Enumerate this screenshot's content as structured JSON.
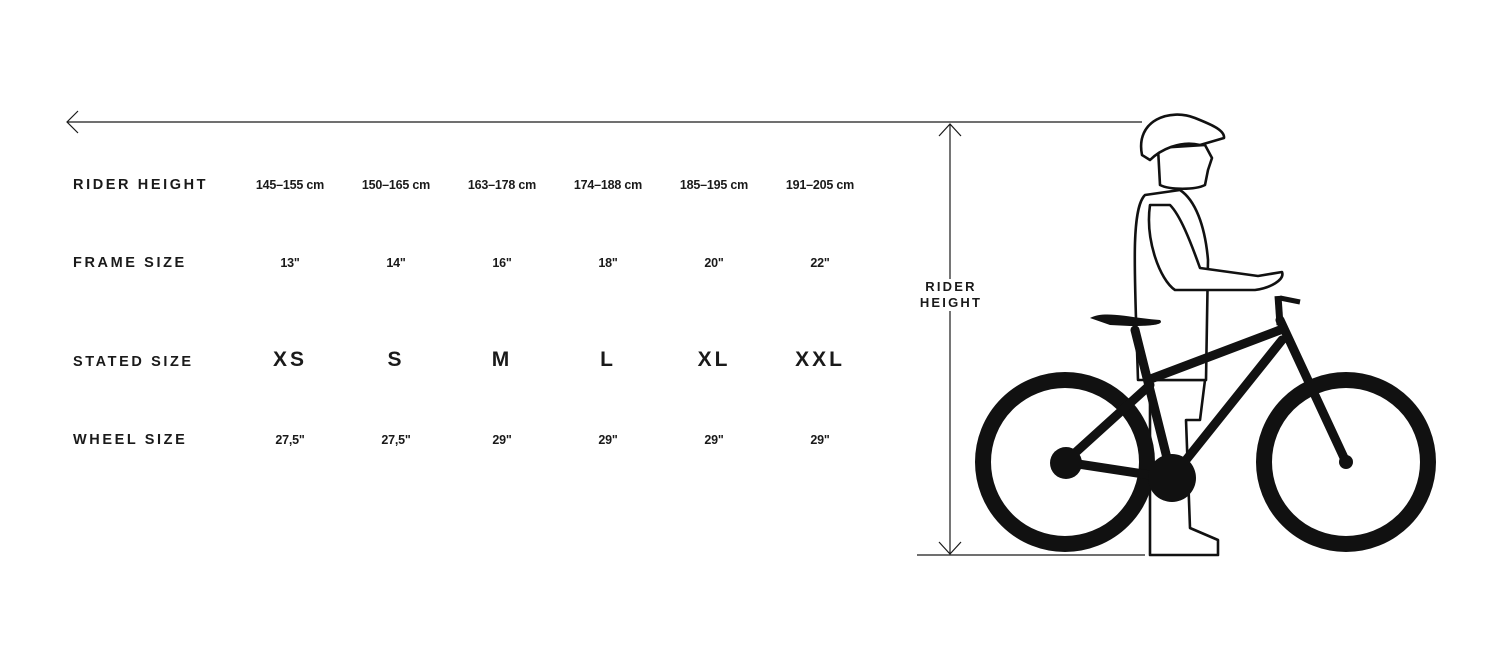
{
  "chart_data": {
    "type": "table",
    "rows": [
      {
        "label": "RIDER HEIGHT",
        "values": [
          "145–155 cm",
          "150–165 cm",
          "163–178 cm",
          "174–188 cm",
          "185–195 cm",
          "191–205 cm"
        ]
      },
      {
        "label": "FRAME SIZE",
        "values": [
          "13\"",
          "14\"",
          "16\"",
          "18\"",
          "20\"",
          "22\""
        ]
      },
      {
        "label": "STATED SIZE",
        "values": [
          "XS",
          "S",
          "M",
          "L",
          "XL",
          "XXL"
        ]
      },
      {
        "label": "WHEEL SIZE",
        "values": [
          "27,5\"",
          "27,5\"",
          "29\"",
          "29\"",
          "29\"",
          "29\""
        ]
      }
    ]
  },
  "illustration": {
    "dimension_label_line1": "RIDER",
    "dimension_label_line2": "HEIGHT",
    "icons": [
      "arrow-left-icon",
      "rider-with-bike-illustration"
    ],
    "line_color": "#1a1a1a"
  }
}
